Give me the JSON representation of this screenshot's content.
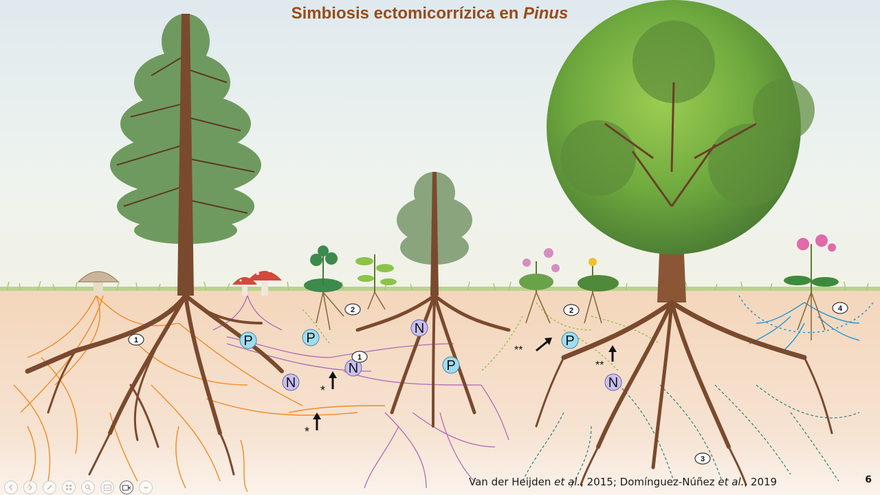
{
  "slide": {
    "title_part1": "Simbiosis ectomicorrízica en ",
    "title_italic": "Pinus",
    "citation": {
      "a1": "Van der Heijden ",
      "a1_etal": "et al.",
      "a2": ", 2015; Domínguez-Núñez ",
      "a2_etal": "et al.",
      "a3": ", 2019"
    },
    "slide_number": "6"
  },
  "diagram": {
    "markers": {
      "p": "P",
      "n": "N",
      "one": "1",
      "two": "2",
      "three": "3",
      "four": "4",
      "star": "*",
      "dstar": "**"
    }
  },
  "toolbar": {
    "buttons": [
      "prev-icon",
      "next-icon",
      "pen-icon",
      "slides-grid-icon",
      "zoom-icon",
      "subtitles-icon",
      "camera-icon",
      "more-icon"
    ],
    "more_label": "•••"
  },
  "colors": {
    "title": "#9a4a1a",
    "soil": "#f3dcc6",
    "root": "#7a4a2e",
    "fungus_orange": "#f08a24",
    "fungus_purple": "#b06ab8",
    "fungus_green": "#7fbf3a",
    "fungus_blue": "#2b9ad6",
    "phosphorus_marker": "#9fdcef",
    "nitrogen_marker": "#c9c0ee"
  }
}
